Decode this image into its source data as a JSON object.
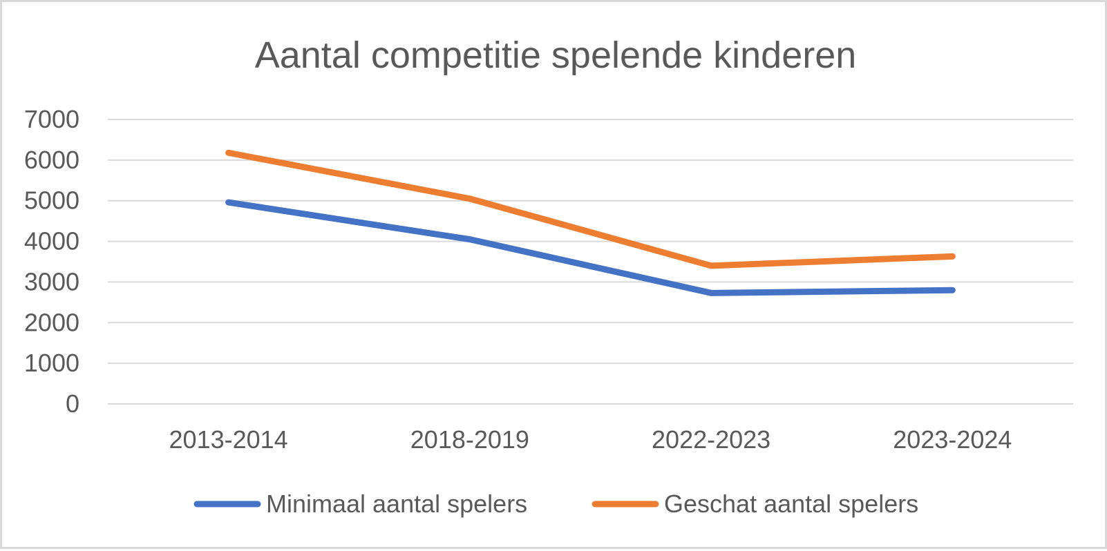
{
  "chart_data": {
    "type": "line",
    "title": "Aantal competitie spelende kinderen",
    "categories": [
      "2013-2014",
      "2018-2019",
      "2022-2023",
      "2023-2024"
    ],
    "series": [
      {
        "name": "Minimaal aantal spelers",
        "values": [
          4960,
          4050,
          2730,
          2800
        ],
        "color": "#4472c4"
      },
      {
        "name": "Geschat aantal spelers",
        "values": [
          6180,
          5050,
          3400,
          3630
        ],
        "color": "#ed7d31"
      }
    ],
    "y_ticks": [
      "0",
      "1000",
      "2000",
      "3000",
      "4000",
      "5000",
      "6000",
      "7000"
    ],
    "ylim": [
      0,
      7000
    ],
    "grid": true,
    "legend_position": "bottom"
  }
}
